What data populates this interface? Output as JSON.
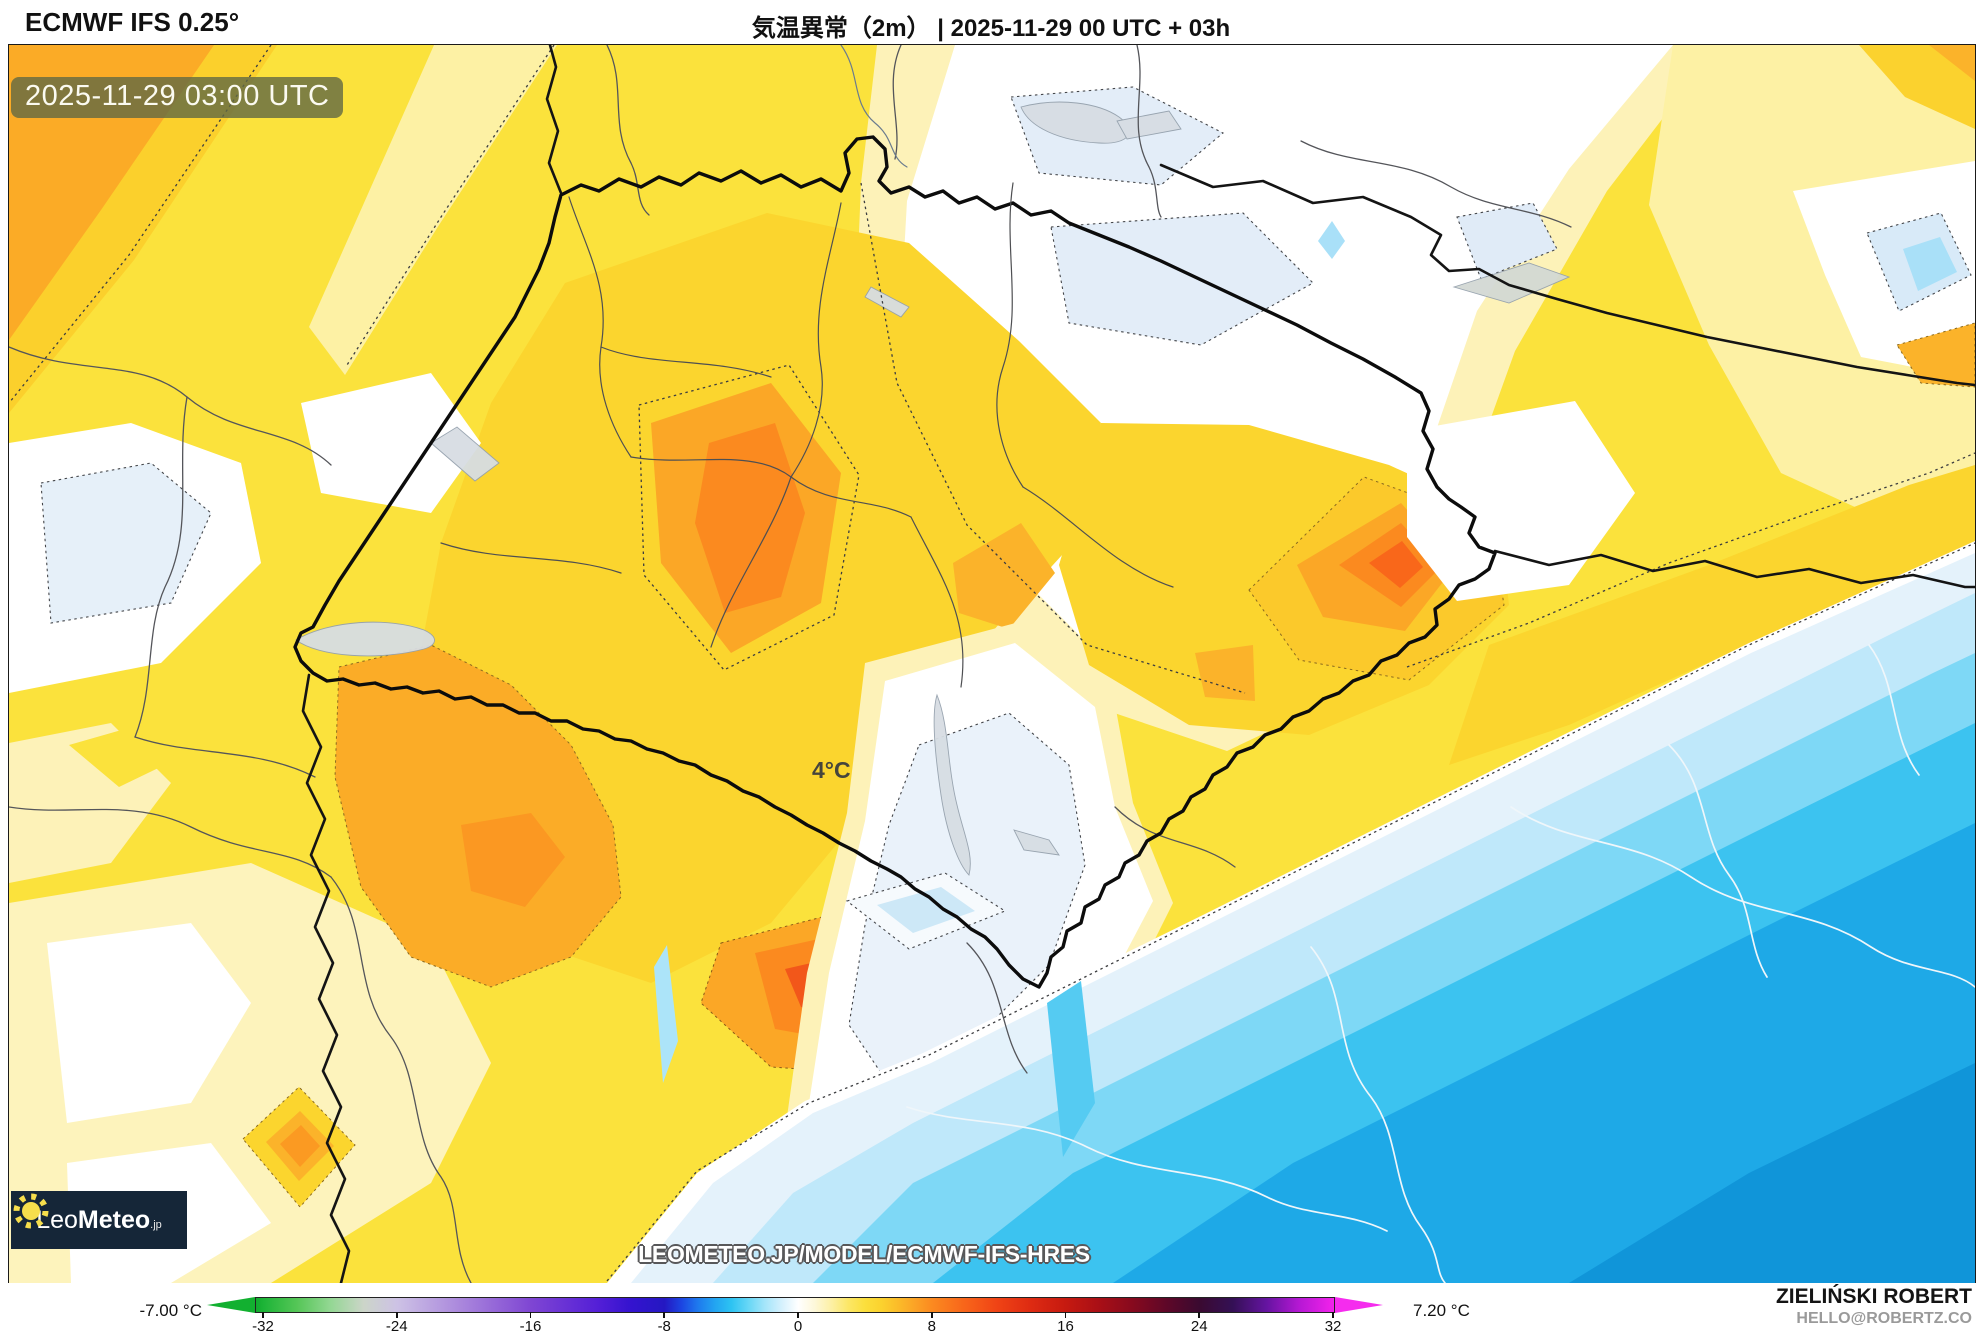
{
  "header": {
    "model": "ECMWF IFS 0.25°",
    "title": "気温異常（2m） | 2025-11-29 00 UTC + 03h"
  },
  "map": {
    "timestamp": "2025-11-29 03:00 UTC",
    "point_label": "4°C",
    "watermark": "LEOMETEO.JP/MODEL/ECMWF-IFS-HRES",
    "logo": {
      "leo": "Leo",
      "meteo": "Meteo",
      "tld": ".jp"
    }
  },
  "colorbar": {
    "min_label": "-7.00 °C",
    "max_label": "7.20 °C",
    "ticks": [
      -32,
      -24,
      -16,
      -8,
      0,
      8,
      16,
      24,
      32
    ],
    "left_arrow_color": "#12b030",
    "right_arrow_color": "#f52cee",
    "gradient": [
      {
        "p": 0,
        "c": "#10ab2e"
      },
      {
        "p": 0.7,
        "c": "#1db437"
      },
      {
        "p": 3.8,
        "c": "#55c657"
      },
      {
        "p": 6.9,
        "c": "#93d793"
      },
      {
        "p": 10,
        "c": "#ccd5c9"
      },
      {
        "p": 13.1,
        "c": "#cdc2e5"
      },
      {
        "p": 19.3,
        "c": "#a884dc"
      },
      {
        "p": 25.5,
        "c": "#7f46d3"
      },
      {
        "p": 31.7,
        "c": "#541fd7"
      },
      {
        "p": 34.8,
        "c": "#3413cf"
      },
      {
        "p": 37.9,
        "c": "#2418c2"
      },
      {
        "p": 39.5,
        "c": "#1c46e2"
      },
      {
        "p": 41,
        "c": "#1e7aee"
      },
      {
        "p": 42.6,
        "c": "#23a5f1"
      },
      {
        "p": 44.1,
        "c": "#2dc3f2"
      },
      {
        "p": 45.7,
        "c": "#68d7f6"
      },
      {
        "p": 47.2,
        "c": "#a4e5fa"
      },
      {
        "p": 48.8,
        "c": "#d6f1fd"
      },
      {
        "p": 50.3,
        "c": "#ffffff"
      },
      {
        "p": 51.8,
        "c": "#fdf8da"
      },
      {
        "p": 53.4,
        "c": "#fdf0a4"
      },
      {
        "p": 54.9,
        "c": "#fce768"
      },
      {
        "p": 56.5,
        "c": "#fbdf3c"
      },
      {
        "p": 58,
        "c": "#fbd22e"
      },
      {
        "p": 59.6,
        "c": "#fbbb29"
      },
      {
        "p": 61.1,
        "c": "#fba326"
      },
      {
        "p": 62.7,
        "c": "#fb8a20"
      },
      {
        "p": 65.8,
        "c": "#f8641a"
      },
      {
        "p": 68.9,
        "c": "#ef4215"
      },
      {
        "p": 72,
        "c": "#dd2a12"
      },
      {
        "p": 75.1,
        "c": "#c61a10"
      },
      {
        "p": 78.2,
        "c": "#a90f16"
      },
      {
        "p": 81.3,
        "c": "#870a1e"
      },
      {
        "p": 84.4,
        "c": "#5f0728"
      },
      {
        "p": 87.5,
        "c": "#3a0a30"
      },
      {
        "p": 90.6,
        "c": "#341055"
      },
      {
        "p": 93.7,
        "c": "#6414a0"
      },
      {
        "p": 96.8,
        "c": "#b618d4"
      },
      {
        "p": 100,
        "c": "#f322ec"
      }
    ]
  },
  "footer": {
    "author": "ZIELIŃSKI ROBERT",
    "contact": "HELLO@ROBERTZ.CO"
  },
  "palette": {
    "base_warm": "#FBE23C",
    "pale_yellow": "#FDF1A4",
    "cream": "#FDF2B8",
    "gold": "#FBD52E",
    "amber": "#FBA726",
    "deep_orange": "#FB8A1F",
    "hot_core": "#F2571A",
    "hottest": "#E04314",
    "pale_blue": "#E4F2FB",
    "light_cyan": "#BFE8FA",
    "cyan": "#7ED8F6",
    "strong_cyan": "#3CC3F0",
    "blue": "#1EA9E7",
    "deep_blue": "#1095D9",
    "lake": "#D7DDE3",
    "border_thick": "#0c0c0c",
    "border_thin": "#54555a",
    "badge_bg": "#616943"
  }
}
